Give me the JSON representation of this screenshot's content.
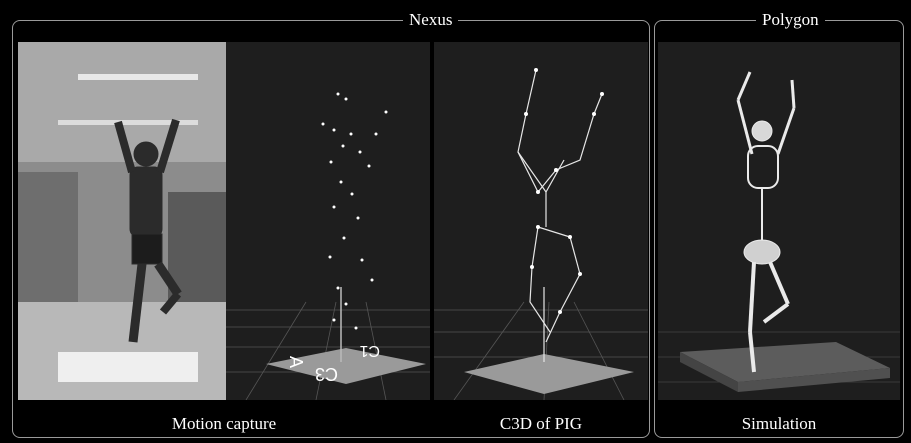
{
  "groups": {
    "nexus": "Nexus",
    "polygon": "Polygon"
  },
  "panels": {
    "motion_capture": "Motion capture",
    "c3d": "C3D of PIG",
    "simulation": "Simulation"
  },
  "plate_labels": {
    "left": "A",
    "middle": "C1",
    "right": "C3"
  }
}
